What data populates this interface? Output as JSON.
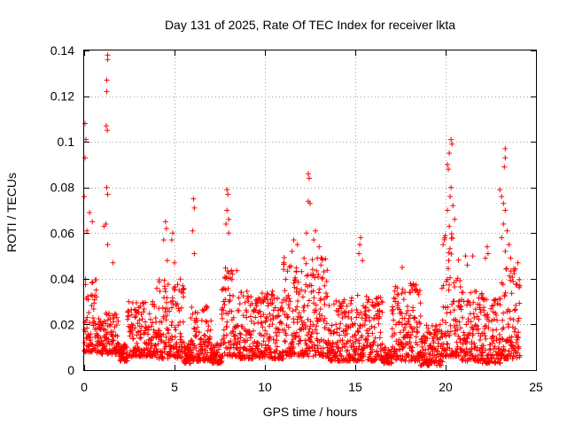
{
  "chart_data": {
    "type": "scatter",
    "title": "Day 131 of 2025, Rate Of TEC Index for receiver lkta",
    "xlabel": "GPS time / hours",
    "ylabel": "ROTI / TECUs",
    "xlim": [
      0,
      25
    ],
    "ylim": [
      0,
      0.14
    ],
    "x_ticks": [
      0,
      5,
      10,
      15,
      20,
      25
    ],
    "x_tick_labels": [
      "0",
      "5",
      "10",
      "15",
      "20",
      "25"
    ],
    "y_ticks": [
      0,
      0.02,
      0.04,
      0.06,
      0.08,
      0.1,
      0.12,
      0.14
    ],
    "y_tick_labels": [
      "0",
      "0.02",
      "0.04",
      "0.06",
      "0.08",
      "0.1",
      "0.12",
      "0.14"
    ],
    "grid": true,
    "marker": "+",
    "color": "#ff0000",
    "series": [
      {
        "name": "ROTI",
        "sampling": "approximately every 0.02 h; values estimated from the figure envelope (typical band 0.005–0.03, with spikes)",
        "spikes": [
          {
            "x": 0.05,
            "y": 0.108
          },
          {
            "x": 0.1,
            "y": 0.101
          },
          {
            "x": 0.05,
            "y": 0.093
          },
          {
            "x": 0.0,
            "y": 0.076
          },
          {
            "x": 0.3,
            "y": 0.069
          },
          {
            "x": 0.45,
            "y": 0.065
          },
          {
            "x": 0.15,
            "y": 0.061
          },
          {
            "x": 1.3,
            "y": 0.138
          },
          {
            "x": 1.3,
            "y": 0.136
          },
          {
            "x": 1.25,
            "y": 0.127
          },
          {
            "x": 1.25,
            "y": 0.122
          },
          {
            "x": 1.22,
            "y": 0.107
          },
          {
            "x": 1.28,
            "y": 0.105
          },
          {
            "x": 1.25,
            "y": 0.08
          },
          {
            "x": 1.3,
            "y": 0.077
          },
          {
            "x": 1.2,
            "y": 0.064
          },
          {
            "x": 1.1,
            "y": 0.063
          },
          {
            "x": 1.3,
            "y": 0.055
          },
          {
            "x": 1.6,
            "y": 0.047
          },
          {
            "x": 4.5,
            "y": 0.065
          },
          {
            "x": 4.55,
            "y": 0.062
          },
          {
            "x": 4.4,
            "y": 0.057
          },
          {
            "x": 4.6,
            "y": 0.048
          },
          {
            "x": 4.9,
            "y": 0.06
          },
          {
            "x": 4.85,
            "y": 0.057
          },
          {
            "x": 5.0,
            "y": 0.047
          },
          {
            "x": 6.05,
            "y": 0.075
          },
          {
            "x": 6.1,
            "y": 0.071
          },
          {
            "x": 6.0,
            "y": 0.061
          },
          {
            "x": 6.1,
            "y": 0.051
          },
          {
            "x": 7.9,
            "y": 0.079
          },
          {
            "x": 7.95,
            "y": 0.077
          },
          {
            "x": 7.9,
            "y": 0.07
          },
          {
            "x": 8.0,
            "y": 0.066
          },
          {
            "x": 7.85,
            "y": 0.064
          },
          {
            "x": 8.0,
            "y": 0.06
          },
          {
            "x": 11.6,
            "y": 0.057
          },
          {
            "x": 11.8,
            "y": 0.055
          },
          {
            "x": 11.5,
            "y": 0.052
          },
          {
            "x": 12.4,
            "y": 0.086
          },
          {
            "x": 12.45,
            "y": 0.084
          },
          {
            "x": 12.4,
            "y": 0.074
          },
          {
            "x": 12.5,
            "y": 0.073
          },
          {
            "x": 12.3,
            "y": 0.06
          },
          {
            "x": 12.8,
            "y": 0.061
          },
          {
            "x": 12.7,
            "y": 0.057
          },
          {
            "x": 13.0,
            "y": 0.054
          },
          {
            "x": 12.9,
            "y": 0.049
          },
          {
            "x": 13.1,
            "y": 0.046
          },
          {
            "x": 15.3,
            "y": 0.058
          },
          {
            "x": 15.25,
            "y": 0.055
          },
          {
            "x": 15.2,
            "y": 0.051
          },
          {
            "x": 15.4,
            "y": 0.048
          },
          {
            "x": 17.6,
            "y": 0.045
          },
          {
            "x": 18.1,
            "y": 0.037
          },
          {
            "x": 18.0,
            "y": 0.034
          },
          {
            "x": 20.3,
            "y": 0.101
          },
          {
            "x": 20.35,
            "y": 0.099
          },
          {
            "x": 20.2,
            "y": 0.095
          },
          {
            "x": 20.1,
            "y": 0.09
          },
          {
            "x": 20.15,
            "y": 0.088
          },
          {
            "x": 20.3,
            "y": 0.08
          },
          {
            "x": 20.25,
            "y": 0.076
          },
          {
            "x": 20.4,
            "y": 0.072
          },
          {
            "x": 20.1,
            "y": 0.07
          },
          {
            "x": 20.5,
            "y": 0.066
          },
          {
            "x": 20.2,
            "y": 0.063
          },
          {
            "x": 21.1,
            "y": 0.05
          },
          {
            "x": 21.2,
            "y": 0.046
          },
          {
            "x": 21.5,
            "y": 0.05
          },
          {
            "x": 22.3,
            "y": 0.054
          },
          {
            "x": 22.35,
            "y": 0.051
          },
          {
            "x": 22.2,
            "y": 0.049
          },
          {
            "x": 23.3,
            "y": 0.097
          },
          {
            "x": 23.3,
            "y": 0.093
          },
          {
            "x": 23.25,
            "y": 0.089
          },
          {
            "x": 23.0,
            "y": 0.079
          },
          {
            "x": 23.1,
            "y": 0.076
          },
          {
            "x": 23.2,
            "y": 0.073
          },
          {
            "x": 23.3,
            "y": 0.07
          },
          {
            "x": 23.2,
            "y": 0.064
          },
          {
            "x": 23.4,
            "y": 0.061
          },
          {
            "x": 23.1,
            "y": 0.058
          },
          {
            "x": 23.5,
            "y": 0.055
          },
          {
            "x": 23.3,
            "y": 0.052
          },
          {
            "x": 23.6,
            "y": 0.049
          },
          {
            "x": 24.0,
            "y": 0.047
          }
        ],
        "envelope": [
          {
            "x": [
              0.0,
              0.7
            ],
            "low": 0.008,
            "high": 0.04
          },
          {
            "x": [
              0.7,
              1.9
            ],
            "low": 0.007,
            "high": 0.025
          },
          {
            "x": [
              1.9,
              2.4
            ],
            "low": 0.004,
            "high": 0.012
          },
          {
            "x": [
              2.4,
              4.0
            ],
            "low": 0.006,
            "high": 0.03
          },
          {
            "x": [
              4.0,
              5.5
            ],
            "low": 0.005,
            "high": 0.04
          },
          {
            "x": [
              5.5,
              5.9
            ],
            "low": 0.003,
            "high": 0.012
          },
          {
            "x": [
              5.9,
              7.0
            ],
            "low": 0.004,
            "high": 0.028
          },
          {
            "x": [
              7.0,
              7.6
            ],
            "low": 0.003,
            "high": 0.012
          },
          {
            "x": [
              7.6,
              8.6
            ],
            "low": 0.006,
            "high": 0.045
          },
          {
            "x": [
              8.6,
              11.0
            ],
            "low": 0.005,
            "high": 0.035
          },
          {
            "x": [
              11.0,
              13.5
            ],
            "low": 0.006,
            "high": 0.05
          },
          {
            "x": [
              13.5,
              16.5
            ],
            "low": 0.004,
            "high": 0.033
          },
          {
            "x": [
              16.5,
              17.0
            ],
            "low": 0.003,
            "high": 0.01
          },
          {
            "x": [
              17.0,
              18.6
            ],
            "low": 0.004,
            "high": 0.038
          },
          {
            "x": [
              18.6,
              19.8
            ],
            "low": 0.002,
            "high": 0.02
          },
          {
            "x": [
              19.8,
              20.8
            ],
            "low": 0.006,
            "high": 0.06
          },
          {
            "x": [
              20.8,
              22.0
            ],
            "low": 0.004,
            "high": 0.035
          },
          {
            "x": [
              22.0,
              23.0
            ],
            "low": 0.003,
            "high": 0.032
          },
          {
            "x": [
              23.0,
              24.1
            ],
            "low": 0.005,
            "high": 0.045
          }
        ]
      }
    ]
  }
}
